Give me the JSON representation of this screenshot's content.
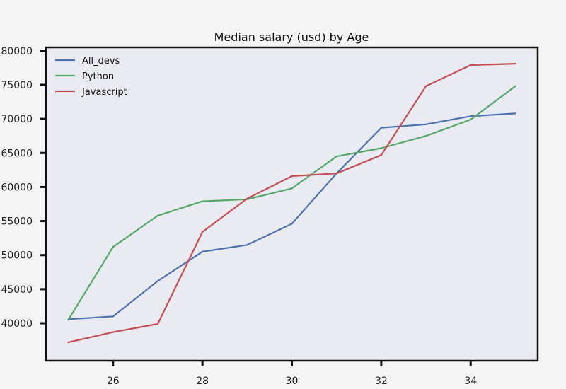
{
  "chart_data": {
    "type": "line",
    "title": "Median salary (usd) by Age",
    "xlabel": "",
    "ylabel": "",
    "xlim": [
      24.5,
      35.5
    ],
    "ylim": [
      34500,
      80500
    ],
    "x_ticks": [
      26,
      28,
      30,
      32,
      34
    ],
    "y_ticks": [
      40000,
      45000,
      50000,
      55000,
      60000,
      65000,
      70000,
      75000,
      80000
    ],
    "x": [
      25,
      26,
      27,
      28,
      29,
      30,
      31,
      32,
      33,
      34,
      35
    ],
    "legend_position": "top-left",
    "grid": false,
    "series": [
      {
        "name": "All_devs",
        "color": "#4c72b0",
        "values": [
          40600,
          41000,
          46200,
          50500,
          51500,
          54600,
          62000,
          68700,
          69200,
          70400,
          70800
        ]
      },
      {
        "name": "Python",
        "color": "#55a868",
        "values": [
          40500,
          51200,
          55800,
          57900,
          58200,
          59800,
          64500,
          65700,
          67500,
          69900,
          74800
        ]
      },
      {
        "name": "Javascript",
        "color": "#c44e52",
        "values": [
          37200,
          38700,
          39900,
          53400,
          58300,
          61600,
          62000,
          64700,
          74800,
          77900,
          78100
        ]
      }
    ]
  }
}
